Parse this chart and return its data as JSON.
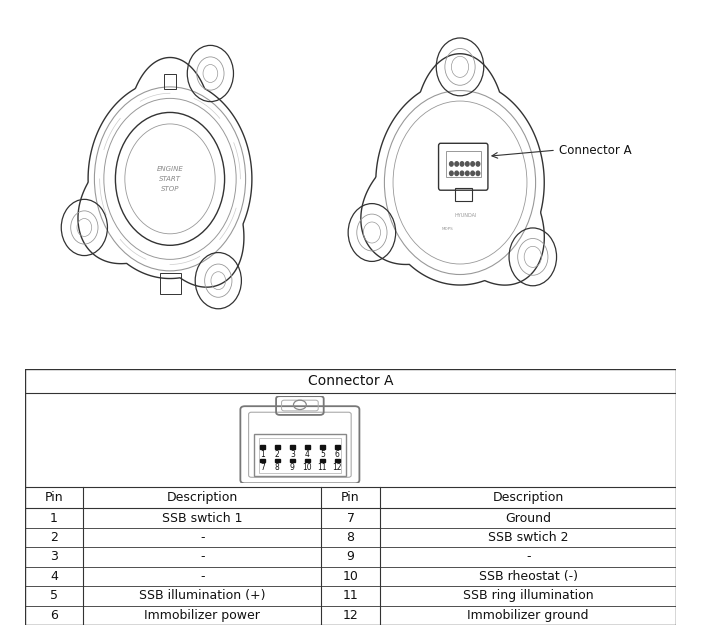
{
  "background_color": "#ffffff",
  "table_title": "Connector A",
  "connector_label": "Connector A",
  "header_row": [
    "Pin",
    "Description",
    "Pin",
    "Description"
  ],
  "table_rows": [
    [
      "1",
      "SSB swtich 1",
      "7",
      "Ground"
    ],
    [
      "2",
      "-",
      "8",
      "SSB swtich 2"
    ],
    [
      "3",
      "-",
      "9",
      "-"
    ],
    [
      "4",
      "-",
      "10",
      "SSB rheostat (-)"
    ],
    [
      "5",
      "SSB illumination (+)",
      "11",
      "SSB ring illumination"
    ],
    [
      "6",
      "Immobilizer power",
      "12",
      "Immobilizer ground"
    ]
  ],
  "col_boundaries": [
    0.0,
    0.09,
    0.455,
    0.545,
    1.0
  ],
  "pin_row_top": [
    1,
    2,
    3,
    4,
    5,
    6
  ],
  "pin_row_bottom": [
    7,
    8,
    9,
    10,
    11,
    12
  ],
  "border_color": "#000000",
  "text_color": "#111111",
  "pin_dot_color": "#111111",
  "line_color": "#333333",
  "light_line_color": "#999999"
}
